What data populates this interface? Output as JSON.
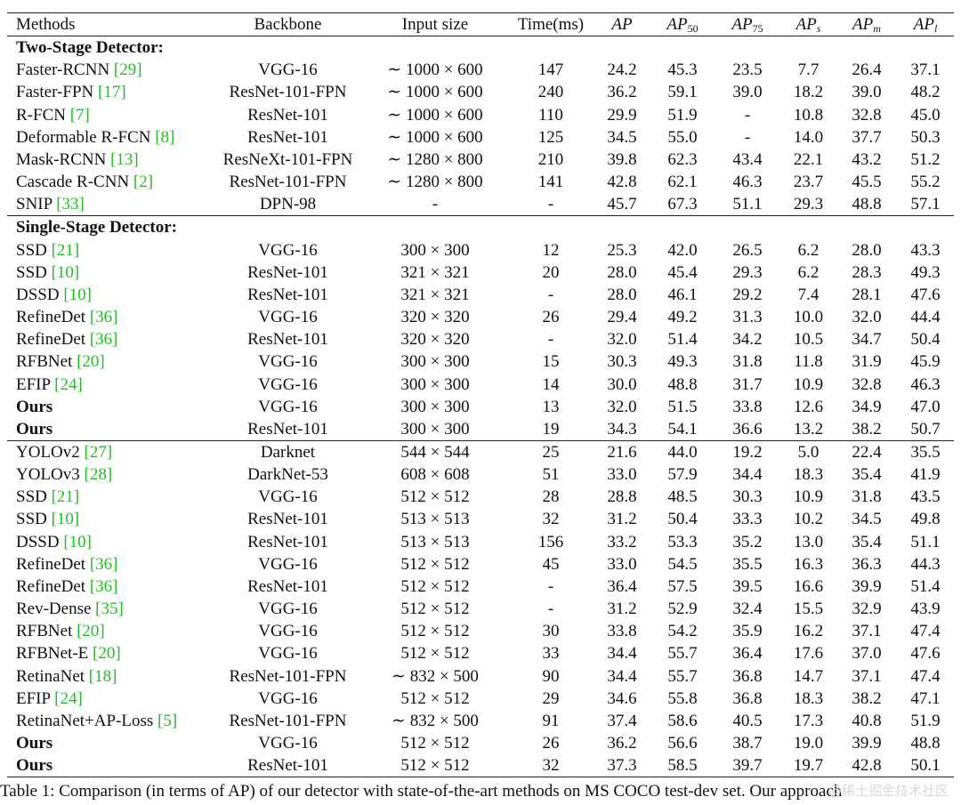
{
  "header": {
    "methods": "Methods",
    "backbone": "Backbone",
    "input": "Input size",
    "time": "Time(ms)",
    "ap": "AP",
    "ap50_base": "AP",
    "ap50_sub": "50",
    "ap75_base": "AP",
    "ap75_sub": "75",
    "aps_base": "AP",
    "aps_sub": "s",
    "apm_base": "AP",
    "apm_sub": "m",
    "apl_base": "AP",
    "apl_sub": "l"
  },
  "sections": {
    "two_stage": "Two-Stage Detector:",
    "single_stage": "Single-Stage Detector:"
  },
  "rows": [
    {
      "name": "Faster-RCNN",
      "ref": "[29]",
      "backbone": "VGG-16",
      "input": "∼ 1000 × 600",
      "time": "147",
      "ap": "24.2",
      "ap50": "45.3",
      "ap75": "23.5",
      "aps": "7.7",
      "apm": "26.4",
      "apl": "37.1"
    },
    {
      "name": "Faster-FPN",
      "ref": "[17]",
      "backbone": "ResNet-101-FPN",
      "input": "∼ 1000 × 600",
      "time": "240",
      "ap": "36.2",
      "ap50": "59.1",
      "ap75": "39.0",
      "aps": "18.2",
      "apm": "39.0",
      "apl": "48.2"
    },
    {
      "name": "R-FCN",
      "ref": "[7]",
      "backbone": "ResNet-101",
      "input": "∼ 1000 × 600",
      "time": "110",
      "ap": "29.9",
      "ap50": "51.9",
      "ap75": "-",
      "aps": "10.8",
      "apm": "32.8",
      "apl": "45.0"
    },
    {
      "name": "Deformable R-FCN",
      "ref": "[8]",
      "backbone": "ResNet-101",
      "input": "∼ 1000 × 600",
      "time": "125",
      "ap": "34.5",
      "ap50": "55.0",
      "ap75": "-",
      "aps": "14.0",
      "apm": "37.7",
      "apl": "50.3"
    },
    {
      "name": "Mask-RCNN",
      "ref": "[13]",
      "backbone": "ResNeXt-101-FPN",
      "input": "∼ 1280 × 800",
      "time": "210",
      "ap": "39.8",
      "ap50": "62.3",
      "ap75": "43.4",
      "aps": "22.1",
      "apm": "43.2",
      "apl": "51.2"
    },
    {
      "name": "Cascade R-CNN",
      "ref": "[2]",
      "backbone": "ResNet-101-FPN",
      "input": "∼ 1280 × 800",
      "time": "141",
      "ap": "42.8",
      "ap50": "62.1",
      "ap75": "46.3",
      "aps": "23.7",
      "apm": "45.5",
      "apl": "55.2"
    },
    {
      "name": "SNIP",
      "ref": "[33]",
      "backbone": "DPN-98",
      "input": "-",
      "time": "-",
      "ap": "45.7",
      "ap50": "67.3",
      "ap75": "51.1",
      "aps": "29.3",
      "apm": "48.8",
      "apl": "57.1"
    },
    {
      "name": "SSD",
      "ref": "[21]",
      "backbone": "VGG-16",
      "input": "300 × 300",
      "time": "12",
      "ap": "25.3",
      "ap50": "42.0",
      "ap75": "26.5",
      "aps": "6.2",
      "apm": "28.0",
      "apl": "43.3"
    },
    {
      "name": "SSD",
      "ref": "[10]",
      "backbone": "ResNet-101",
      "input": "321 × 321",
      "time": "20",
      "ap": "28.0",
      "ap50": "45.4",
      "ap75": "29.3",
      "aps": "6.2",
      "apm": "28.3",
      "apl": "49.3"
    },
    {
      "name": "DSSD",
      "ref": "[10]",
      "backbone": "ResNet-101",
      "input": "321 × 321",
      "time": "-",
      "ap": "28.0",
      "ap50": "46.1",
      "ap75": "29.2",
      "aps": "7.4",
      "apm": "28.1",
      "apl": "47.6"
    },
    {
      "name": "RefineDet",
      "ref": "[36]",
      "backbone": "VGG-16",
      "input": "320 × 320",
      "time": "26",
      "ap": "29.4",
      "ap50": "49.2",
      "ap75": "31.3",
      "aps": "10.0",
      "apm": "32.0",
      "apl": "44.4"
    },
    {
      "name": "RefineDet",
      "ref": "[36]",
      "backbone": "ResNet-101",
      "input": "320 × 320",
      "time": "-",
      "ap": "32.0",
      "ap50": "51.4",
      "ap75": "34.2",
      "aps": "10.5",
      "apm": "34.7",
      "apl": "50.4"
    },
    {
      "name": "RFBNet",
      "ref": "[20]",
      "backbone": "VGG-16",
      "input": "300 × 300",
      "time": "15",
      "ap": "30.3",
      "ap50": "49.3",
      "ap75": "31.8",
      "aps": "11.8",
      "apm": "31.9",
      "apl": "45.9"
    },
    {
      "name": "EFIP",
      "ref": "[24]",
      "backbone": "VGG-16",
      "input": "300 × 300",
      "time": "14",
      "ap": "30.0",
      "ap50": "48.8",
      "ap75": "31.7",
      "aps": "10.9",
      "apm": "32.8",
      "apl": "46.3"
    },
    {
      "name": "Ours",
      "ref": "",
      "backbone": "VGG-16",
      "input": "300 × 300",
      "time": "13",
      "ap": "32.0",
      "ap50": "51.5",
      "ap75": "33.8",
      "aps": "12.6",
      "apm": "34.9",
      "apl": "47.0"
    },
    {
      "name": "Ours",
      "ref": "",
      "backbone": "ResNet-101",
      "input": "300 × 300",
      "time": "19",
      "ap": "34.3",
      "ap50": "54.1",
      "ap75": "36.6",
      "aps": "13.2",
      "apm": "38.2",
      "apl": "50.7"
    },
    {
      "name": "YOLOv2",
      "ref": "[27]",
      "backbone": "Darknet",
      "input": "544 × 544",
      "time": "25",
      "ap": "21.6",
      "ap50": "44.0",
      "ap75": "19.2",
      "aps": "5.0",
      "apm": "22.4",
      "apl": "35.5"
    },
    {
      "name": "YOLOv3",
      "ref": "[28]",
      "backbone": "DarkNet-53",
      "input": "608 × 608",
      "time": "51",
      "ap": "33.0",
      "ap50": "57.9",
      "ap75": "34.4",
      "aps": "18.3",
      "apm": "35.4",
      "apl": "41.9"
    },
    {
      "name": "SSD",
      "ref": "[21]",
      "backbone": "VGG-16",
      "input": "512 × 512",
      "time": "28",
      "ap": "28.8",
      "ap50": "48.5",
      "ap75": "30.3",
      "aps": "10.9",
      "apm": "31.8",
      "apl": "43.5"
    },
    {
      "name": "SSD",
      "ref": "[10]",
      "backbone": "ResNet-101",
      "input": "513 × 513",
      "time": "32",
      "ap": "31.2",
      "ap50": "50.4",
      "ap75": "33.3",
      "aps": "10.2",
      "apm": "34.5",
      "apl": "49.8"
    },
    {
      "name": "DSSD",
      "ref": "[10]",
      "backbone": "ResNet-101",
      "input": "513 × 513",
      "time": "156",
      "ap": "33.2",
      "ap50": "53.3",
      "ap75": "35.2",
      "aps": "13.0",
      "apm": "35.4",
      "apl": "51.1"
    },
    {
      "name": "RefineDet",
      "ref": "[36]",
      "backbone": "VGG-16",
      "input": "512 × 512",
      "time": "45",
      "ap": "33.0",
      "ap50": "54.5",
      "ap75": "35.5",
      "aps": "16.3",
      "apm": "36.3",
      "apl": "44.3"
    },
    {
      "name": "RefineDet",
      "ref": "[36]",
      "backbone": "ResNet-101",
      "input": "512 × 512",
      "time": "-",
      "ap": "36.4",
      "ap50": "57.5",
      "ap75": "39.5",
      "aps": "16.6",
      "apm": "39.9",
      "apl": "51.4"
    },
    {
      "name": "Rev-Dense",
      "ref": "[35]",
      "backbone": "VGG-16",
      "input": "512 × 512",
      "time": "-",
      "ap": "31.2",
      "ap50": "52.9",
      "ap75": "32.4",
      "aps": "15.5",
      "apm": "32.9",
      "apl": "43.9"
    },
    {
      "name": "RFBNet",
      "ref": "[20]",
      "backbone": "VGG-16",
      "input": "512 × 512",
      "time": "30",
      "ap": "33.8",
      "ap50": "54.2",
      "ap75": "35.9",
      "aps": "16.2",
      "apm": "37.1",
      "apl": "47.4"
    },
    {
      "name": "RFBNet-E",
      "ref": "[20]",
      "backbone": "VGG-16",
      "input": "512 × 512",
      "time": "33",
      "ap": "34.4",
      "ap50": "55.7",
      "ap75": "36.4",
      "aps": "17.6",
      "apm": "37.0",
      "apl": "47.6"
    },
    {
      "name": "RetinaNet",
      "ref": "[18]",
      "backbone": "ResNet-101-FPN",
      "input": "∼ 832 × 500",
      "time": "90",
      "ap": "34.4",
      "ap50": "55.7",
      "ap75": "36.8",
      "aps": "14.7",
      "apm": "37.1",
      "apl": "47.4"
    },
    {
      "name": "EFIP",
      "ref": "[24]",
      "backbone": "VGG-16",
      "input": "512 × 512",
      "time": "29",
      "ap": "34.6",
      "ap50": "55.8",
      "ap75": "36.8",
      "aps": "18.3",
      "apm": "38.2",
      "apl": "47.1"
    },
    {
      "name": "RetinaNet+AP-Loss",
      "ref": "[5]",
      "backbone": "ResNet-101-FPN",
      "input": "∼ 832 × 500",
      "time": "91",
      "ap": "37.4",
      "ap50": "58.6",
      "ap75": "40.5",
      "aps": "17.3",
      "apm": "40.8",
      "apl": "51.9"
    },
    {
      "name": "Ours",
      "ref": "",
      "backbone": "VGG-16",
      "input": "512 × 512",
      "time": "26",
      "ap": "36.2",
      "ap50": "56.6",
      "ap75": "38.7",
      "aps": "19.0",
      "apm": "39.9",
      "apl": "48.8"
    },
    {
      "name": "Ours",
      "ref": "",
      "backbone": "ResNet-101",
      "input": "512 × 512",
      "time": "32",
      "ap": "37.3",
      "ap50": "58.5",
      "ap75": "39.7",
      "aps": "19.7",
      "apm": "42.8",
      "apl": "50.1"
    }
  ],
  "caption": "Table 1: Comparison (in terms of AP) of our detector with state-of-the-art methods on MS COCO test-dev set. Our approach",
  "watermark": "@稀土掘金技术社区"
}
